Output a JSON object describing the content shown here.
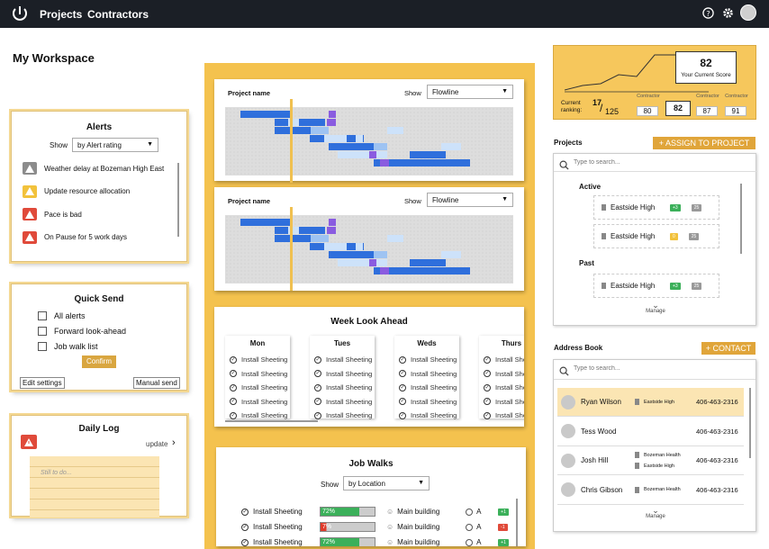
{
  "nav": {
    "projects": "Projects",
    "contractors": "Contractors"
  },
  "page_title": "My Workspace",
  "alerts": {
    "title": "Alerts",
    "show_label": "Show",
    "filter": "by Alert rating",
    "items": [
      {
        "text": "Weather delay at Bozeman High East",
        "color": "#8c8c8c"
      },
      {
        "text": "Update resource allocation",
        "color": "#f2c23c"
      },
      {
        "text": "Pace is bad",
        "color": "#e04a3a"
      },
      {
        "text": "On Pause for 5 work days",
        "color": "#e04a3a"
      }
    ]
  },
  "quick_send": {
    "title": "Quick Send",
    "options": [
      "All alerts",
      "Forward look-ahead",
      "Job walk list"
    ],
    "confirm": "Confirm",
    "edit": "Edit settings",
    "manual": "Manual send"
  },
  "daily_log": {
    "title": "Daily Log",
    "update": "update",
    "placeholder": "Still to do..."
  },
  "project_charts": [
    {
      "name": "Project name",
      "show": "Show",
      "view": "Flowline"
    },
    {
      "name": "Project name",
      "show": "Show",
      "view": "Flowline"
    }
  ],
  "week_ahead": {
    "title": "Week Look Ahead",
    "days": [
      "Mon",
      "Tues",
      "Weds",
      "Thurs"
    ],
    "task": "Install Sheeting"
  },
  "job_walks": {
    "title": "Job Walks",
    "show": "Show",
    "filter": "by Location",
    "rows": [
      {
        "task": "Install Sheeting",
        "progress": 72,
        "label": "72%",
        "color": "#3bb05a",
        "location": "Main building",
        "letter": "A",
        "tag": "+1",
        "tagcolor": "#3bb05a"
      },
      {
        "task": "Install Sheeting",
        "progress": 7,
        "label": "7%",
        "color": "#e03a2a",
        "location": "Main building",
        "letter": "A",
        "tag": "-1",
        "tagcolor": "#e04a3a"
      },
      {
        "task": "Install Sheeting",
        "progress": 72,
        "label": "72%",
        "color": "#3bb05a",
        "location": "Main building",
        "letter": "A",
        "tag": "+1",
        "tagcolor": "#3bb05a"
      }
    ]
  },
  "ranking": {
    "score": "82",
    "score_label": "Your Current Score",
    "current_label": "Current ranking:",
    "rank": "17",
    "total": "125",
    "contractor_label": "Contractor",
    "scores": [
      "80",
      "82",
      "87",
      "91"
    ]
  },
  "projects": {
    "title": "Projects",
    "assign": "+ ASSIGN TO PROJECT",
    "search_placeholder": "Type to search...",
    "active_label": "Active",
    "past_label": "Past",
    "manage": "Manage",
    "items": [
      {
        "name": "Eastside High",
        "tag": "+3",
        "tagcolor": "#3bb05a",
        "count": "25"
      },
      {
        "name": "Eastside High",
        "tag": "0",
        "tagcolor": "#f2c23c",
        "count": "25"
      },
      {
        "name": "Eastside High",
        "tag": "+3",
        "tagcolor": "#3bb05a",
        "count": "25"
      }
    ]
  },
  "address_book": {
    "title": "Address Book",
    "add": "+ CONTACT",
    "search_placeholder": "Type to search...",
    "manage": "Manage",
    "contacts": [
      {
        "name": "Ryan Wilson",
        "orgs": [
          "Eastside High"
        ],
        "phone": "406-463-2316",
        "selected": true
      },
      {
        "name": "Tess Wood",
        "orgs": [],
        "phone": "406-463-2316",
        "selected": false
      },
      {
        "name": "Josh Hill",
        "orgs": [
          "Bozeman Health",
          "Eastside High"
        ],
        "phone": "406-463-2316",
        "selected": false
      },
      {
        "name": "Chris Gibson",
        "orgs": [
          "Bozeman Health"
        ],
        "phone": "406-463-2316",
        "selected": false
      }
    ]
  }
}
